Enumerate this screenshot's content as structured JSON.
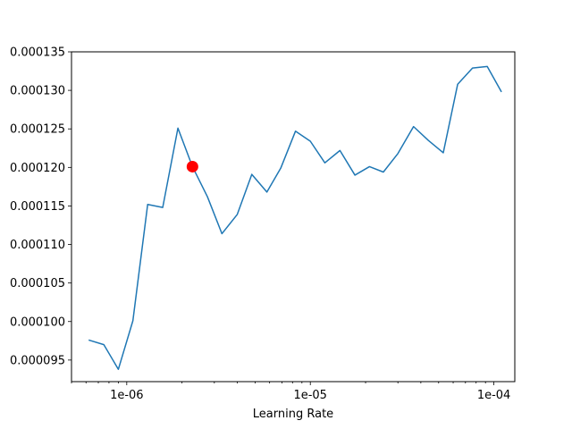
{
  "chart_data": {
    "type": "line",
    "title": "",
    "xlabel": "Learning Rate",
    "ylabel": "",
    "x_scale": "log",
    "xlim": [
      5e-07,
      0.00013
    ],
    "ylim": [
      9.22e-05,
      0.000135
    ],
    "grid": false,
    "x_ticks": [
      {
        "value": 1e-06,
        "label": "1e-06"
      },
      {
        "value": 1e-05,
        "label": "1e-05"
      },
      {
        "value": 0.0001,
        "label": "1e-04"
      }
    ],
    "y_ticks": [
      {
        "value": 9.5e-05,
        "label": "0.000095"
      },
      {
        "value": 0.0001,
        "label": "0.000100"
      },
      {
        "value": 0.000105,
        "label": "0.000105"
      },
      {
        "value": 0.00011,
        "label": "0.000110"
      },
      {
        "value": 0.000115,
        "label": "0.000115"
      },
      {
        "value": 0.00012,
        "label": "0.000120"
      },
      {
        "value": 0.000125,
        "label": "0.000125"
      },
      {
        "value": 0.00013,
        "label": "0.000130"
      },
      {
        "value": 0.000135,
        "label": "0.000135"
      }
    ],
    "series": [
      {
        "color": "#1f77b4",
        "x": [
          6.2e-07,
          7.5e-07,
          9e-07,
          1.08e-06,
          1.3e-06,
          1.57e-06,
          1.9e-06,
          2.28e-06,
          2.75e-06,
          3.3e-06,
          4e-06,
          4.8e-06,
          5.8e-06,
          6.9e-06,
          8.3e-06,
          1e-05,
          1.2e-05,
          1.45e-05,
          1.75e-05,
          2.1e-05,
          2.5e-05,
          3e-05,
          3.65e-05,
          4.4e-05,
          5.3e-05,
          6.35e-05,
          7.65e-05,
          9.2e-05,
          0.00011
        ],
        "y": [
          9.76e-05,
          9.7e-05,
          9.38e-05,
          0.0001001,
          0.0001152,
          0.0001148,
          0.0001251,
          0.0001201,
          0.0001162,
          0.0001114,
          0.0001139,
          0.0001191,
          0.0001168,
          0.0001199,
          0.0001247,
          0.0001234,
          0.0001206,
          0.0001222,
          0.000119,
          0.0001201,
          0.0001194,
          0.0001218,
          0.0001253,
          0.0001235,
          0.0001219,
          0.0001308,
          0.0001329,
          0.0001331,
          0.0001298
        ]
      }
    ],
    "marker": {
      "x": 2.28e-06,
      "y": 0.0001201,
      "color": "#ff0000"
    }
  }
}
